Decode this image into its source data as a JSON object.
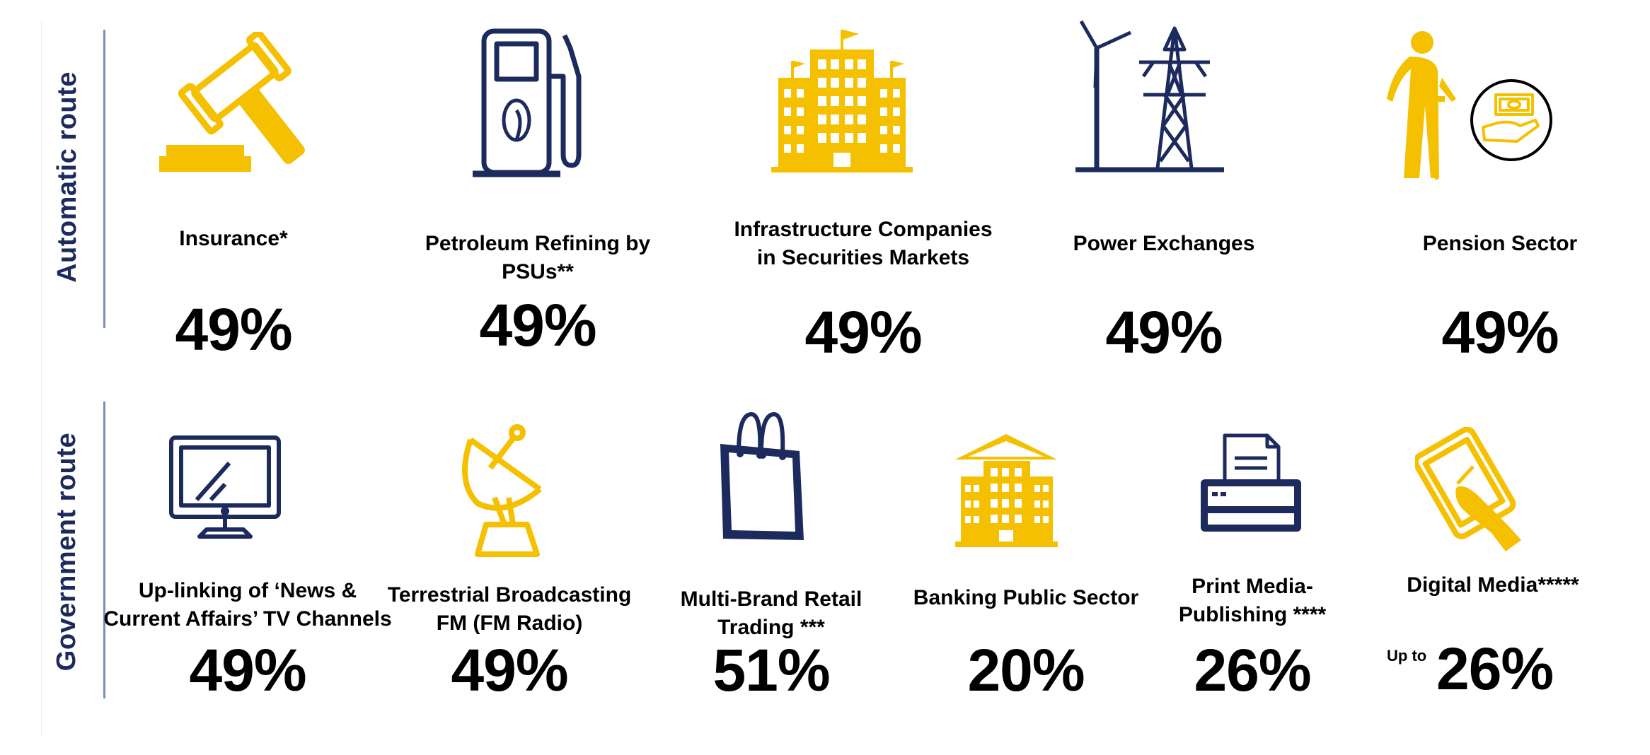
{
  "routes": {
    "automatic": "Automatic route",
    "government": "Government route"
  },
  "colors": {
    "accent": "#f5c000",
    "navy": "#1c2a5e",
    "divider": "#7a8cc4"
  },
  "automatic": [
    {
      "sector": "Insurance*",
      "value": "49%",
      "icon": "gavel-icon"
    },
    {
      "sector": "Petroleum Refining by",
      "sector2": "PSUs**",
      "value": "49%",
      "icon": "fuel-pump-icon"
    },
    {
      "sector": "Infrastructure Companies",
      "sector2": "in Securities Markets",
      "value": "49%",
      "icon": "office-building-icon"
    },
    {
      "sector": "Power Exchanges",
      "value": "49%",
      "icon": "transmission-tower-icon"
    },
    {
      "sector": "Pension Sector",
      "value": "49%",
      "icon": "elderly-person-icon"
    }
  ],
  "government": [
    {
      "sector": "Up-linking of ‘News &",
      "sector2": "Current Affairs’ TV Channels",
      "value": "49%",
      "icon": "monitor-icon"
    },
    {
      "sector": "Terrestrial Broadcasting",
      "sector2": "FM (FM Radio)",
      "value": "49%",
      "icon": "satellite-dish-icon"
    },
    {
      "sector": "Multi-Brand Retail",
      "sector2": "Trading ***",
      "value": "51%",
      "icon": "shopping-bag-icon"
    },
    {
      "sector": "Banking Public Sector",
      "value": "20%",
      "icon": "bank-building-icon"
    },
    {
      "sector": "Print Media-",
      "sector2": "Publishing ****",
      "value": "26%",
      "icon": "printer-icon"
    },
    {
      "sector": "Digital Media*****",
      "value": "26%",
      "prefix": "Up to",
      "icon": "tablet-touch-icon"
    }
  ]
}
